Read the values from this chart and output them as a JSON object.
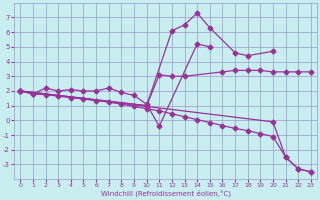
{
  "xlabel": "Windchill (Refroidissement éolien,°C)",
  "bg_color": "#c8eef0",
  "line_color": "#993399",
  "grid_color": "#9999cc",
  "ylim": [
    -4,
    8
  ],
  "xlim": [
    -0.5,
    23.5
  ],
  "yticks": [
    -3,
    -2,
    -1,
    0,
    1,
    2,
    3,
    4,
    5,
    6,
    7
  ],
  "xticks": [
    0,
    1,
    2,
    3,
    4,
    5,
    6,
    7,
    8,
    9,
    10,
    11,
    12,
    13,
    14,
    15,
    16,
    17,
    18,
    19,
    20,
    21,
    22,
    23
  ],
  "line1_x": [
    0,
    1,
    2,
    3,
    4,
    5,
    6,
    7,
    8,
    9,
    10,
    11,
    14,
    15
  ],
  "line1_y": [
    2.0,
    1.8,
    2.2,
    2.0,
    2.1,
    2.0,
    2.0,
    2.2,
    1.9,
    1.7,
    1.1,
    -0.4,
    5.2,
    5.0
  ],
  "line2_x": [
    0,
    10,
    11,
    12,
    13,
    16,
    17,
    18,
    19,
    20,
    21,
    22,
    23
  ],
  "line2_y": [
    2.0,
    1.0,
    3.1,
    3.0,
    3.0,
    3.3,
    3.4,
    3.4,
    3.4,
    3.3,
    3.3,
    3.3,
    3.3
  ],
  "line3_x": [
    0,
    10,
    12,
    13,
    14,
    15,
    17,
    18,
    20
  ],
  "line3_y": [
    2.0,
    1.0,
    6.1,
    6.5,
    7.3,
    6.3,
    4.6,
    4.4,
    4.7
  ],
  "line4_x": [
    0,
    1,
    2,
    3,
    4,
    5,
    6,
    7,
    8,
    9,
    10,
    11,
    12,
    13,
    14,
    15,
    16,
    17,
    18,
    19,
    20,
    21,
    22,
    23
  ],
  "line4_y": [
    2.0,
    1.8,
    1.75,
    1.65,
    1.55,
    1.45,
    1.35,
    1.25,
    1.1,
    0.95,
    0.8,
    0.65,
    0.45,
    0.25,
    0.05,
    -0.15,
    -0.35,
    -0.55,
    -0.7,
    -0.9,
    -1.1,
    -2.5,
    -3.3,
    -3.5
  ],
  "line5_x": [
    0,
    20,
    21,
    22,
    23
  ],
  "line5_y": [
    2.0,
    -0.1,
    -2.5,
    -3.3,
    -3.5
  ]
}
